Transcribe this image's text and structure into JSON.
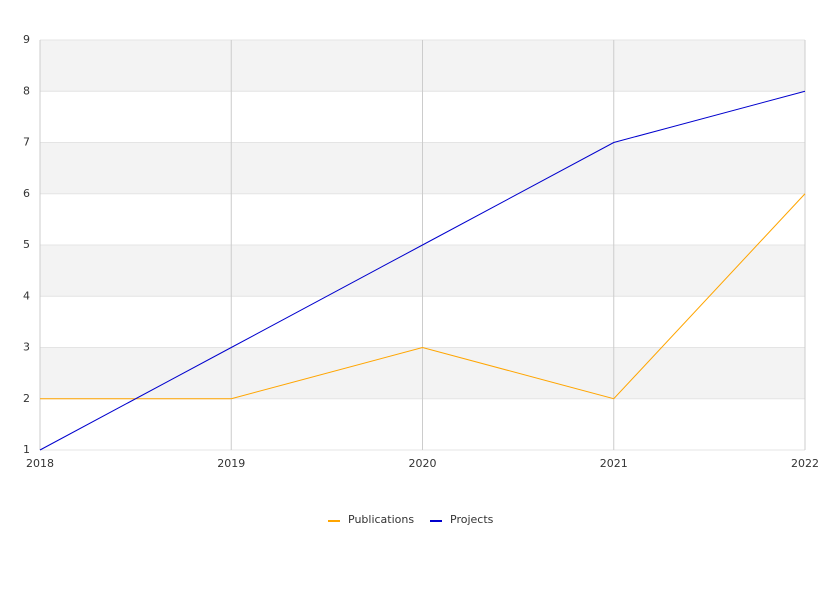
{
  "chart_data": {
    "type": "line",
    "x": [
      2018,
      2019,
      2020,
      2021,
      2022
    ],
    "xlim": [
      2018,
      2022
    ],
    "xticks": [
      2018,
      2019,
      2020,
      2021,
      2022
    ],
    "ylim": [
      1,
      9
    ],
    "yticks": [
      1,
      2,
      3,
      4,
      5,
      6,
      7,
      8,
      9
    ],
    "grid": true,
    "legend": "bottom",
    "series": [
      {
        "name": "Publications",
        "color": "#ffa500",
        "values": [
          2,
          2,
          3,
          2,
          6
        ]
      },
      {
        "name": "Projects",
        "color": "#0000cd",
        "values": [
          1,
          3,
          5,
          7,
          8
        ]
      }
    ]
  }
}
